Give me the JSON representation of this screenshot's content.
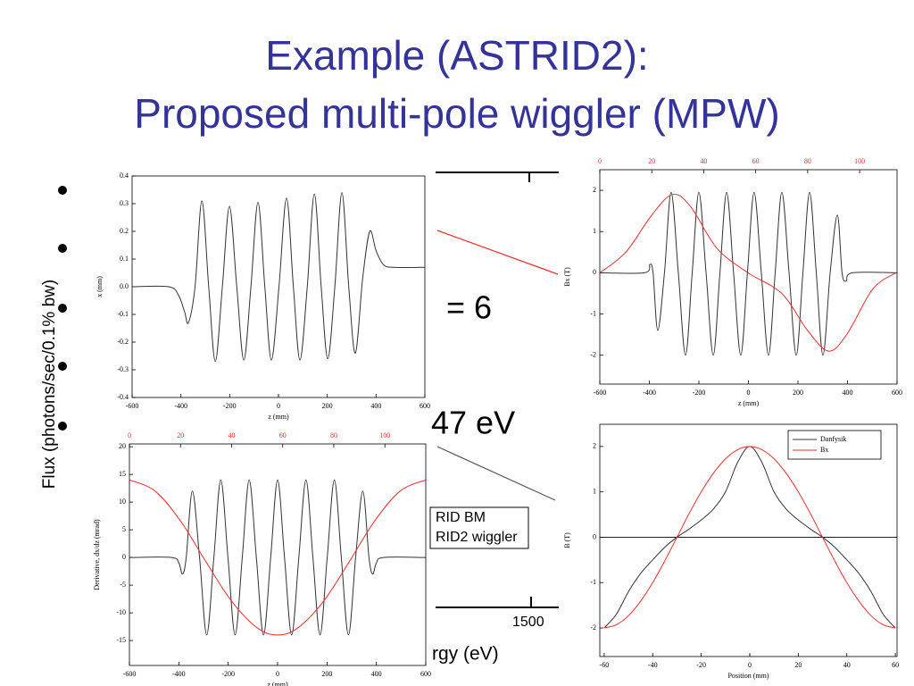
{
  "title": [
    "Example (ASTRID2):",
    "Proposed multi-pole wiggler (MPW)"
  ],
  "background": {
    "y_label": "Flux (photons/sec/0.1% bw)",
    "fragments": [
      "= 6",
      "47 eV",
      "RID BM",
      "RID2 wiggler",
      "1500",
      "rgy (eV)"
    ]
  },
  "chart_data": [
    {
      "type": "line",
      "xlabel": "z (mm)",
      "ylabel": "x (mm)",
      "xlim": [
        -600,
        600
      ],
      "ylim": [
        -0.4,
        0.4
      ],
      "xticks": [
        -600,
        -400,
        -200,
        0,
        200,
        400,
        600
      ],
      "yticks": [
        -0.4,
        -0.3,
        -0.2,
        -0.1,
        {
          "value": 0,
          "label": "0.0"
        },
        0.1,
        0.2,
        0.3,
        0.4
      ],
      "series": [
        {
          "color": "#333333",
          "x": [
            -600,
            -450,
            -410,
            -385,
            -369,
            -342,
            -314,
            -286,
            -259,
            -230,
            -201,
            -171,
            -142,
            -113,
            -84,
            -56,
            -29,
            2,
            33,
            61,
            88,
            118,
            147,
            175,
            202,
            231,
            260,
            288,
            315,
            345,
            374,
            400,
            430,
            470,
            600
          ],
          "values": [
            0,
            0,
            -0.03,
            -0.09,
            -0.13,
            0,
            0.31,
            0,
            -0.27,
            0,
            0.29,
            0,
            -0.265,
            0,
            0.305,
            0,
            -0.265,
            0,
            0.32,
            0,
            -0.265,
            0,
            0.335,
            0,
            -0.26,
            0,
            0.34,
            0,
            -0.24,
            0.03,
            0.2,
            0.13,
            0.08,
            0.07,
            0.07
          ]
        }
      ]
    },
    {
      "type": "line",
      "xlabel": "z (mm)",
      "ylabel": "Bx (T)",
      "xlim": [
        -600,
        600
      ],
      "ylim": [
        -2.7,
        2.5
      ],
      "x2lim": [
        0,
        114.4
      ],
      "xticks": [
        -600,
        -400,
        -200,
        0,
        200,
        400,
        600
      ],
      "x2ticks": [
        0,
        20,
        40,
        60,
        80,
        100
      ],
      "yticks": [
        -2,
        -1,
        0,
        1,
        2
      ],
      "series": [
        {
          "color": "#333333",
          "x": [
            -600,
            -420,
            -398,
            -385,
            -366,
            -339,
            -312,
            -283,
            -254,
            -227,
            -200,
            -171,
            -142,
            -115,
            -88,
            -60,
            -31,
            -4,
            23,
            52,
            81,
            108,
            135,
            164,
            193,
            220,
            247,
            274,
            301,
            330,
            359,
            378,
            395,
            420,
            600
          ],
          "values": [
            0,
            0,
            0.2,
            0,
            -1.4,
            0,
            1.95,
            0,
            -2,
            0,
            1.95,
            0,
            -2,
            0,
            1.95,
            0,
            -2,
            0,
            1.95,
            0,
            -2,
            0,
            1.95,
            0,
            -2,
            0,
            1.95,
            0,
            -2,
            0,
            1.4,
            0,
            -0.2,
            0,
            0
          ]
        },
        {
          "color": "#e8312f",
          "axis": "x2",
          "x": [
            0,
            10,
            20,
            28,
            35,
            45,
            57,
            70,
            80,
            88,
            95,
            105,
            114
          ],
          "values": [
            0,
            0.5,
            1.4,
            1.9,
            1.6,
            0.6,
            0,
            -0.5,
            -1.4,
            -1.9,
            -1.5,
            -0.4,
            0
          ]
        }
      ]
    },
    {
      "type": "line",
      "xlabel": "z (mm)",
      "ylabel": "Derivative, dx/dz (mrad)",
      "xlim": [
        -600,
        600
      ],
      "ylim": [
        -19.5,
        20.5
      ],
      "x2lim": [
        0,
        116
      ],
      "xticks": [
        -600,
        -400,
        -200,
        0,
        200,
        400,
        600
      ],
      "x2ticks": [
        0,
        20,
        40,
        60,
        80,
        100
      ],
      "yticks": [
        -15,
        -10,
        -5,
        0,
        5,
        10,
        15,
        20
      ],
      "series": [
        {
          "color": "#333333",
          "x": [
            -600,
            -430,
            -400,
            -385,
            -370,
            -345,
            -316,
            -287,
            -258,
            -230,
            -201,
            -172,
            -143,
            -115,
            -86,
            -57,
            -28,
            0,
            28,
            57,
            86,
            115,
            143,
            172,
            201,
            230,
            258,
            287,
            316,
            345,
            370,
            385,
            400,
            430,
            600
          ],
          "values": [
            0,
            0,
            -1,
            -3,
            0,
            12,
            0,
            -14,
            0,
            14,
            0,
            -14,
            0,
            14,
            0,
            -14,
            0,
            14,
            0,
            -14,
            0,
            14,
            0,
            -14,
            0,
            14,
            0,
            -14,
            0,
            12,
            0,
            -3,
            -1,
            0,
            0
          ]
        },
        {
          "color": "#e8312f",
          "axis": "x2",
          "x": [
            0,
            10,
            20,
            30,
            40,
            50,
            58,
            66,
            76,
            86,
            96,
            106,
            116
          ],
          "values": [
            14,
            12,
            6.6,
            -0.8,
            -7.9,
            -12.7,
            -14,
            -12.7,
            -7.9,
            -0.8,
            6.6,
            12,
            14
          ]
        }
      ]
    },
    {
      "type": "line",
      "xlabel": "Position (mm)",
      "ylabel": "B (T)",
      "xlim": [
        -61.8,
        60.7
      ],
      "ylim": [
        -2.63,
        2.49
      ],
      "xticks": [
        -60,
        -40,
        -20,
        0,
        20,
        40,
        60
      ],
      "yticks": [
        -2,
        -1,
        0,
        1,
        2
      ],
      "legend": "upper right",
      "series": [
        {
          "name": "Danfysik",
          "color": "#333333",
          "x": [
            -60,
            -55,
            -50,
            -45,
            -40,
            -35,
            -30,
            -25,
            -20,
            -15,
            -10,
            -5,
            0,
            5,
            10,
            15,
            20,
            25,
            30,
            35,
            40,
            45,
            50,
            55,
            60
          ],
          "values": [
            -2,
            -1.7,
            -1.2,
            -0.8,
            -0.5,
            -0.22,
            0,
            0.18,
            0.38,
            0.62,
            1,
            1.65,
            2,
            1.65,
            1,
            0.62,
            0.38,
            0.18,
            0,
            -0.22,
            -0.5,
            -0.8,
            -1.2,
            -1.7,
            -2
          ]
        },
        {
          "name": "Bx",
          "color": "#e8312f",
          "x": [
            -60,
            -55,
            -50,
            -45,
            -40,
            -35,
            -30,
            -25,
            -20,
            -15,
            -10,
            -5,
            0,
            5,
            10,
            15,
            20,
            25,
            30,
            35,
            40,
            45,
            50,
            55,
            60
          ],
          "values": [
            -2,
            -1.93,
            -1.73,
            -1.41,
            -1,
            -0.52,
            0,
            0.52,
            1,
            1.41,
            1.73,
            1.93,
            2,
            1.93,
            1.73,
            1.41,
            1,
            0.52,
            0,
            -0.52,
            -1,
            -1.41,
            -1.73,
            -1.93,
            -2
          ]
        }
      ]
    }
  ]
}
